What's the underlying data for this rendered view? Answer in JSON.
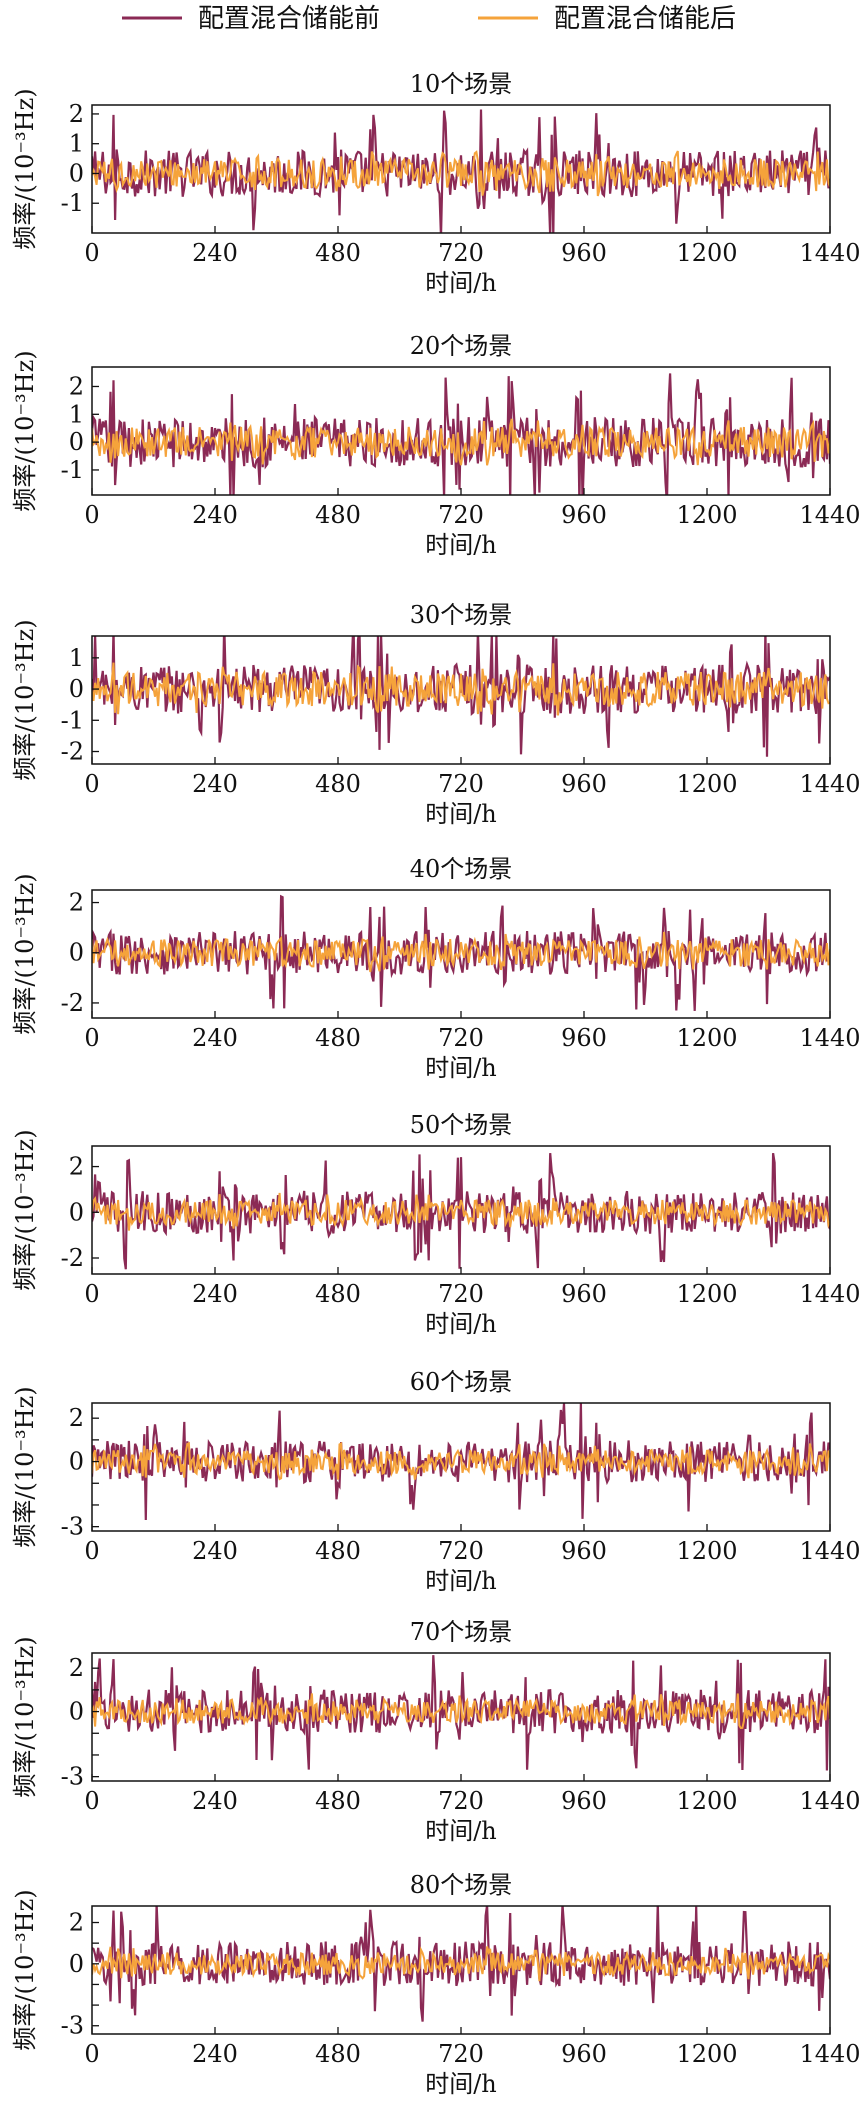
{
  "legend": [
    {
      "label": "配置混合储能前",
      "color": "#8b2a55"
    },
    {
      "label": "配置混合储能后",
      "color": "#f5a33b"
    }
  ],
  "chart_data": [
    {
      "type": "line",
      "title": "10个场景",
      "xlabel": "时间/h",
      "ylabel": "频率/(10⁻³Hz)",
      "xlim": [
        0,
        1440
      ],
      "ylim": [
        -2,
        2.3
      ],
      "xticks": [
        0,
        240,
        480,
        720,
        960,
        1200,
        1440
      ],
      "yticks": [
        -1,
        0,
        1,
        2
      ],
      "series": [
        {
          "name": "配置混合储能前",
          "amplitude": 2.2
        },
        {
          "name": "配置混合储能后",
          "amplitude": 0.9
        }
      ]
    },
    {
      "type": "line",
      "title": "20个场景",
      "xlabel": "时间/h",
      "ylabel": "频率/(10⁻³Hz)",
      "xlim": [
        0,
        1440
      ],
      "ylim": [
        -1.9,
        2.7
      ],
      "xticks": [
        0,
        240,
        480,
        720,
        960,
        1200,
        1440
      ],
      "yticks": [
        -1,
        0,
        1,
        2
      ],
      "series": [
        {
          "name": "配置混合储能前",
          "amplitude": 2.5
        },
        {
          "name": "配置混合储能后",
          "amplitude": 1.0
        }
      ]
    },
    {
      "type": "line",
      "title": "30个场景",
      "xlabel": "时间/h",
      "ylabel": "频率/(10⁻³Hz)",
      "xlim": [
        0,
        1440
      ],
      "ylim": [
        -2.4,
        1.7
      ],
      "xticks": [
        0,
        240,
        480,
        720,
        960,
        1200,
        1440
      ],
      "yticks": [
        -2,
        -1,
        0,
        1
      ],
      "series": [
        {
          "name": "配置混合储能前",
          "amplitude": 2.2
        },
        {
          "name": "配置混合储能后",
          "amplitude": 1.0
        }
      ]
    },
    {
      "type": "line",
      "title": "40个场景",
      "xlabel": "时间/h",
      "ylabel": "频率/(10⁻³Hz)",
      "xlim": [
        0,
        1440
      ],
      "ylim": [
        -2.6,
        2.5
      ],
      "xticks": [
        0,
        240,
        480,
        720,
        960,
        1200,
        1440
      ],
      "yticks": [
        -2,
        0,
        2
      ],
      "series": [
        {
          "name": "配置混合储能前",
          "amplitude": 2.4
        },
        {
          "name": "配置混合储能后",
          "amplitude": 1.0
        }
      ]
    },
    {
      "type": "line",
      "title": "50个场景",
      "xlabel": "时间/h",
      "ylabel": "频率/(10⁻³Hz)",
      "xlim": [
        0,
        1440
      ],
      "ylim": [
        -2.7,
        2.9
      ],
      "xticks": [
        0,
        240,
        480,
        720,
        960,
        1200,
        1440
      ],
      "yticks": [
        -2,
        0,
        2
      ],
      "series": [
        {
          "name": "配置混合储能前",
          "amplitude": 2.6
        },
        {
          "name": "配置混合储能后",
          "amplitude": 1.0
        }
      ]
    },
    {
      "type": "line",
      "title": "60个场景",
      "xlabel": "时间/h",
      "ylabel": "频率/(10⁻³Hz)",
      "xlim": [
        0,
        1440
      ],
      "ylim": [
        -3.2,
        2.7
      ],
      "xticks": [
        0,
        240,
        480,
        720,
        960,
        1200,
        1440
      ],
      "yticks": [
        -3,
        -2,
        -1,
        0,
        1,
        2
      ],
      "yticklabels": [
        "-3",
        "",
        "",
        "0",
        "",
        "2"
      ],
      "series": [
        {
          "name": "配置混合储能前",
          "amplitude": 2.7
        },
        {
          "name": "配置混合储能后",
          "amplitude": 1.0
        }
      ]
    },
    {
      "type": "line",
      "title": "70个场景",
      "xlabel": "时间/h",
      "ylabel": "频率/(10⁻³Hz)",
      "xlim": [
        0,
        1440
      ],
      "ylim": [
        -3.2,
        2.7
      ],
      "xticks": [
        0,
        240,
        480,
        720,
        960,
        1200,
        1440
      ],
      "yticks": [
        -3,
        -2,
        -1,
        0,
        1,
        2
      ],
      "yticklabels": [
        "-3",
        "",
        "",
        "0",
        "",
        "2"
      ],
      "series": [
        {
          "name": "配置混合储能前",
          "amplitude": 2.8
        },
        {
          "name": "配置混合储能后",
          "amplitude": 1.0
        }
      ]
    },
    {
      "type": "line",
      "title": "80个场景",
      "xlabel": "时间/h",
      "ylabel": "频率/(10⁻³Hz)",
      "xlim": [
        0,
        1440
      ],
      "ylim": [
        -3.4,
        2.8
      ],
      "xticks": [
        0,
        240,
        480,
        720,
        960,
        1200,
        1440
      ],
      "yticks": [
        -3,
        -2,
        -1,
        0,
        1,
        2
      ],
      "yticklabels": [
        "-3",
        "",
        "",
        "0",
        "",
        "2"
      ],
      "series": [
        {
          "name": "配置混合储能前",
          "amplitude": 3.0
        },
        {
          "name": "配置混合储能后",
          "amplitude": 1.0
        }
      ]
    }
  ]
}
